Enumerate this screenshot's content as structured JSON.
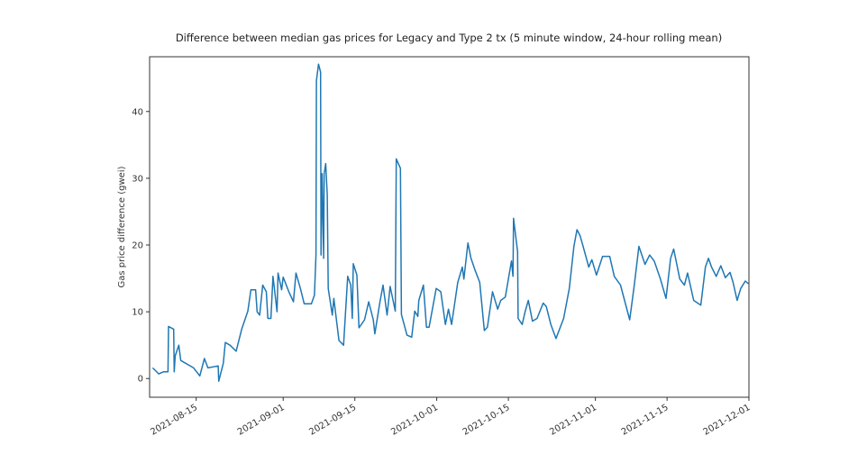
{
  "chart_data": {
    "type": "line",
    "title": "Difference between median gas prices for Legacy and Type 2 tx (5 minute window, 24-hour rolling mean)",
    "xlabel": "",
    "ylabel": "Gas price difference (gwei)",
    "x_units": "days since 2021-08-01",
    "xlim": [
      4.9,
      122
    ],
    "ylim": [
      -2.8,
      48.2
    ],
    "grid": false,
    "legend": "none",
    "line_color": "#1f77b4",
    "x_ticks": [
      {
        "value": 14,
        "label": "2021-08-15"
      },
      {
        "value": 31,
        "label": "2021-09-01"
      },
      {
        "value": 45,
        "label": "2021-09-15"
      },
      {
        "value": 61,
        "label": "2021-10-01"
      },
      {
        "value": 75,
        "label": "2021-10-15"
      },
      {
        "value": 92,
        "label": "2021-11-01"
      },
      {
        "value": 106,
        "label": "2021-11-15"
      },
      {
        "value": 122,
        "label": "2021-12-01"
      }
    ],
    "y_ticks": [
      {
        "value": 0,
        "label": "0"
      },
      {
        "value": 10,
        "label": "10"
      },
      {
        "value": 20,
        "label": "20"
      },
      {
        "value": 30,
        "label": "30"
      },
      {
        "value": 40,
        "label": "40"
      }
    ],
    "series": [
      {
        "name": "difference",
        "points": [
          [
            5.5,
            1.6
          ],
          [
            6.7,
            0.7
          ],
          [
            7.6,
            1.0
          ],
          [
            8.5,
            1.0
          ],
          [
            8.6,
            7.8
          ],
          [
            9.6,
            7.4
          ],
          [
            9.7,
            1.0
          ],
          [
            9.9,
            3.4
          ],
          [
            10.6,
            5.0
          ],
          [
            11.0,
            2.7
          ],
          [
            13.5,
            1.6
          ],
          [
            14.7,
            0.4
          ],
          [
            15.6,
            3.0
          ],
          [
            16.3,
            1.6
          ],
          [
            18.3,
            1.9
          ],
          [
            18.4,
            -0.4
          ],
          [
            19.3,
            2.3
          ],
          [
            19.7,
            5.4
          ],
          [
            20.6,
            5.0
          ],
          [
            21.8,
            4.1
          ],
          [
            22.9,
            7.4
          ],
          [
            24.1,
            10.1
          ],
          [
            24.7,
            13.3
          ],
          [
            25.6,
            13.3
          ],
          [
            25.9,
            10.0
          ],
          [
            26.4,
            9.5
          ],
          [
            27.0,
            14.0
          ],
          [
            27.7,
            13.0
          ],
          [
            28.0,
            9.0
          ],
          [
            28.6,
            9.0
          ],
          [
            29.0,
            15.3
          ],
          [
            29.8,
            10.0
          ],
          [
            30.0,
            15.8
          ],
          [
            30.7,
            13.3
          ],
          [
            31.0,
            15.2
          ],
          [
            32.1,
            13.0
          ],
          [
            33.0,
            11.5
          ],
          [
            33.5,
            15.8
          ],
          [
            34.4,
            13.4
          ],
          [
            35.1,
            11.2
          ],
          [
            36.5,
            11.2
          ],
          [
            37.1,
            12.5
          ],
          [
            37.4,
            18.5
          ],
          [
            37.5,
            44.6
          ],
          [
            37.9,
            47.1
          ],
          [
            38.3,
            45.9
          ],
          [
            38.4,
            18.5
          ],
          [
            38.6,
            30.7
          ],
          [
            38.9,
            18.0
          ],
          [
            39.0,
            30.7
          ],
          [
            39.3,
            32.2
          ],
          [
            39.6,
            27.5
          ],
          [
            39.8,
            13.5
          ],
          [
            40.6,
            9.5
          ],
          [
            40.9,
            12.0
          ],
          [
            41.9,
            5.7
          ],
          [
            42.8,
            5.0
          ],
          [
            43.6,
            15.3
          ],
          [
            44.2,
            14.0
          ],
          [
            44.5,
            9.0
          ],
          [
            44.7,
            17.2
          ],
          [
            45.4,
            15.5
          ],
          [
            45.8,
            7.6
          ],
          [
            46.9,
            8.8
          ],
          [
            47.7,
            11.5
          ],
          [
            48.6,
            8.8
          ],
          [
            48.9,
            6.7
          ],
          [
            49.9,
            11.5
          ],
          [
            50.5,
            14.0
          ],
          [
            51.3,
            9.5
          ],
          [
            51.9,
            13.8
          ],
          [
            52.9,
            10.1
          ],
          [
            53.1,
            32.9
          ],
          [
            53.9,
            31.5
          ],
          [
            54.1,
            9.6
          ],
          [
            55.2,
            6.5
          ],
          [
            56.1,
            6.2
          ],
          [
            56.7,
            10.1
          ],
          [
            57.3,
            9.3
          ],
          [
            57.5,
            11.7
          ],
          [
            58.4,
            14.0
          ],
          [
            59.0,
            7.7
          ],
          [
            59.5,
            7.7
          ],
          [
            60.9,
            13.5
          ],
          [
            61.8,
            13.0
          ],
          [
            62.7,
            8.1
          ],
          [
            63.3,
            10.4
          ],
          [
            63.9,
            8.1
          ],
          [
            65.1,
            14.4
          ],
          [
            66.0,
            16.7
          ],
          [
            66.3,
            14.9
          ],
          [
            67.1,
            20.3
          ],
          [
            67.7,
            18.0
          ],
          [
            68.5,
            16.2
          ],
          [
            69.4,
            14.4
          ],
          [
            70.3,
            7.2
          ],
          [
            70.9,
            7.7
          ],
          [
            71.9,
            13.0
          ],
          [
            72.9,
            10.4
          ],
          [
            73.5,
            11.7
          ],
          [
            74.4,
            12.2
          ],
          [
            75.6,
            17.6
          ],
          [
            75.9,
            15.3
          ],
          [
            76.0,
            24.0
          ],
          [
            76.8,
            19.0
          ],
          [
            76.9,
            9.0
          ],
          [
            77.7,
            8.1
          ],
          [
            78.3,
            10.1
          ],
          [
            78.9,
            11.7
          ],
          [
            79.7,
            8.6
          ],
          [
            80.6,
            9.0
          ],
          [
            81.8,
            11.3
          ],
          [
            82.4,
            10.8
          ],
          [
            83.3,
            8.1
          ],
          [
            84.3,
            6.0
          ],
          [
            85.8,
            9.0
          ],
          [
            86.9,
            13.5
          ],
          [
            87.8,
            19.8
          ],
          [
            88.4,
            22.3
          ],
          [
            89.0,
            21.4
          ],
          [
            89.6,
            19.8
          ],
          [
            90.7,
            16.7
          ],
          [
            91.3,
            17.8
          ],
          [
            92.2,
            15.5
          ],
          [
            93.4,
            18.3
          ],
          [
            94.8,
            18.3
          ],
          [
            95.7,
            15.3
          ],
          [
            96.9,
            14.0
          ],
          [
            98.7,
            8.8
          ],
          [
            99.6,
            14.0
          ],
          [
            100.5,
            19.8
          ],
          [
            101.7,
            17.1
          ],
          [
            102.6,
            18.5
          ],
          [
            103.5,
            17.6
          ],
          [
            104.7,
            14.9
          ],
          [
            105.8,
            12.0
          ],
          [
            106.7,
            18.0
          ],
          [
            107.3,
            19.4
          ],
          [
            108.5,
            14.9
          ],
          [
            109.4,
            14.0
          ],
          [
            110.0,
            15.8
          ],
          [
            111.2,
            11.7
          ],
          [
            112.6,
            11.0
          ],
          [
            113.5,
            16.7
          ],
          [
            114.1,
            18.0
          ],
          [
            114.7,
            16.7
          ],
          [
            115.6,
            15.3
          ],
          [
            116.5,
            16.9
          ],
          [
            117.4,
            15.1
          ],
          [
            118.3,
            15.9
          ],
          [
            118.9,
            14.4
          ],
          [
            119.7,
            11.7
          ],
          [
            120.4,
            13.5
          ],
          [
            121.3,
            14.6
          ],
          [
            121.9,
            14.2
          ]
        ]
      }
    ]
  }
}
